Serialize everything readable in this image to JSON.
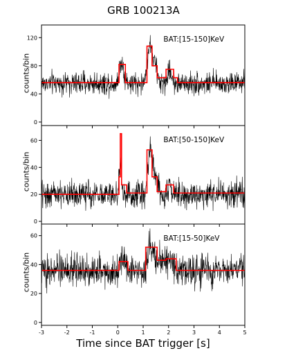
{
  "figure": {
    "title": "GRB 100213A",
    "xlabel": "Time since BAT trigger [s]"
  },
  "colors": {
    "signal": "#000000",
    "model": "#ff0000",
    "axes": "#000000"
  },
  "chart_data": [
    {
      "type": "line",
      "panel": "top",
      "annotation": "BAT:[15-150]KeV",
      "ylabel": "counts/bin",
      "xlim": [
        -3,
        5
      ],
      "ylim": [
        -5,
        138
      ],
      "xticks": [
        -3,
        -2,
        -1,
        0,
        1,
        2,
        3,
        4,
        5
      ],
      "yticks": [
        0,
        40,
        80,
        120
      ],
      "grid": false,
      "noise": {
        "baseline": 55,
        "amplitude": 8
      },
      "peaks": [
        {
          "t": 0.15,
          "height": 30,
          "width": 0.12
        },
        {
          "t": 1.25,
          "height": 55,
          "width": 0.12
        },
        {
          "t": 1.45,
          "height": 28,
          "width": 0.12
        },
        {
          "t": 2.05,
          "height": 18,
          "width": 0.12
        }
      ],
      "model_steps": [
        {
          "x0": -3.0,
          "x1": 0.05,
          "y": 56
        },
        {
          "x0": 0.05,
          "x1": 0.3,
          "y": 82
        },
        {
          "x0": 0.3,
          "x1": 1.15,
          "y": 56
        },
        {
          "x0": 1.15,
          "x1": 1.35,
          "y": 108
        },
        {
          "x0": 1.35,
          "x1": 1.55,
          "y": 80
        },
        {
          "x0": 1.55,
          "x1": 1.9,
          "y": 63
        },
        {
          "x0": 1.9,
          "x1": 2.2,
          "y": 75
        },
        {
          "x0": 2.2,
          "x1": 2.35,
          "y": 63
        },
        {
          "x0": 2.35,
          "x1": 5.0,
          "y": 56
        }
      ]
    },
    {
      "type": "line",
      "panel": "middle",
      "annotation": "BAT:[50-150]KeV",
      "ylabel": "counts/bin",
      "xlim": [
        -3,
        5
      ],
      "ylim": [
        -2,
        71
      ],
      "xticks": [
        -3,
        -2,
        -1,
        0,
        1,
        2,
        3,
        4,
        5
      ],
      "yticks": [
        0,
        20,
        40,
        60
      ],
      "grid": false,
      "noise": {
        "baseline": 20,
        "amplitude": 5
      },
      "peaks": [
        {
          "t": 0.1,
          "height": 25,
          "width": 0.06
        },
        {
          "t": 1.28,
          "height": 35,
          "width": 0.12
        },
        {
          "t": 1.5,
          "height": 12,
          "width": 0.12
        },
        {
          "t": 2.05,
          "height": 7,
          "width": 0.12
        }
      ],
      "model_steps": [
        {
          "x0": -3.0,
          "x1": 0.05,
          "y": 20
        },
        {
          "x0": 0.05,
          "x1": 0.1,
          "y": 33
        },
        {
          "x0": 0.1,
          "x1": 0.15,
          "y": 65
        },
        {
          "x0": 0.15,
          "x1": 0.35,
          "y": 27
        },
        {
          "x0": 0.35,
          "x1": 1.15,
          "y": 21
        },
        {
          "x0": 1.15,
          "x1": 1.35,
          "y": 53
        },
        {
          "x0": 1.35,
          "x1": 1.55,
          "y": 33
        },
        {
          "x0": 1.55,
          "x1": 1.9,
          "y": 22
        },
        {
          "x0": 1.9,
          "x1": 2.2,
          "y": 27
        },
        {
          "x0": 2.2,
          "x1": 5.0,
          "y": 21
        }
      ]
    },
    {
      "type": "line",
      "panel": "bottom",
      "annotation": "BAT:[15-50]KeV",
      "ylabel": "counts/bin",
      "xlim": [
        -3,
        5
      ],
      "ylim": [
        -2,
        68
      ],
      "xticks": [
        -3,
        -2,
        -1,
        0,
        1,
        2,
        3,
        4,
        5
      ],
      "yticks": [
        0,
        20,
        40,
        60
      ],
      "grid": false,
      "noise": {
        "baseline": 36,
        "amplitude": 5.5
      },
      "peaks": [
        {
          "t": 0.2,
          "height": 9,
          "width": 0.15
        },
        {
          "t": 1.3,
          "height": 17,
          "width": 0.15
        },
        {
          "t": 1.7,
          "height": 9,
          "width": 0.2
        },
        {
          "t": 2.1,
          "height": 7,
          "width": 0.15
        }
      ],
      "model_steps": [
        {
          "x0": -3.0,
          "x1": 0.05,
          "y": 36
        },
        {
          "x0": 0.05,
          "x1": 0.4,
          "y": 42
        },
        {
          "x0": 0.4,
          "x1": 1.1,
          "y": 36
        },
        {
          "x0": 1.1,
          "x1": 1.55,
          "y": 52
        },
        {
          "x0": 1.55,
          "x1": 1.9,
          "y": 43
        },
        {
          "x0": 1.9,
          "x1": 2.3,
          "y": 44
        },
        {
          "x0": 2.3,
          "x1": 5.0,
          "y": 36
        }
      ]
    }
  ]
}
